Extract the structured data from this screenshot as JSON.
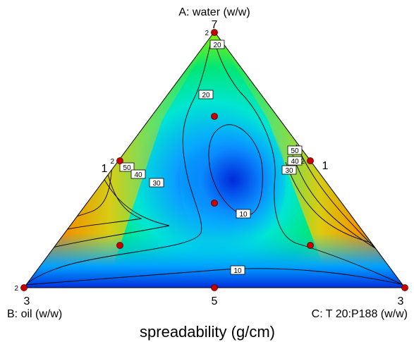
{
  "chart_data": {
    "type": "ternary-contour",
    "title": "",
    "response_label": "spreadability (g/cm)",
    "vertices": {
      "A": {
        "label": "A: water (w/w)",
        "value": "7"
      },
      "B": {
        "label": "B: oil (w/w)",
        "value": "3"
      },
      "C": {
        "label": "C:  T 20:P188 (w/w)",
        "value": "3"
      }
    },
    "bottom_mid_value": "5",
    "contour_levels": [
      10,
      20,
      30,
      40,
      50
    ],
    "contour_labels": [
      {
        "text": "20"
      },
      {
        "text": "20"
      },
      {
        "text": "50"
      },
      {
        "text": "40"
      },
      {
        "text": "30"
      },
      {
        "text": "50"
      },
      {
        "text": "40"
      },
      {
        "text": "30"
      },
      {
        "text": "10"
      },
      {
        "text": "10"
      }
    ],
    "design_points": [
      {
        "label": "2"
      },
      {
        "label": "2"
      },
      {
        "label": "2"
      },
      {
        "label": "2"
      },
      {
        "label": ""
      },
      {
        "label": ""
      },
      {
        "label": ""
      },
      {
        "label": ""
      },
      {
        "label": ""
      },
      {
        "label": ""
      }
    ],
    "replicate_counts": [
      {
        "text": "1"
      },
      {
        "text": "1"
      }
    ],
    "colormap": [
      "#0028e6",
      "#00b4ff",
      "#00ff9c",
      "#9cff00",
      "#ffd200",
      "#ff6e00",
      "#ff2800"
    ]
  }
}
